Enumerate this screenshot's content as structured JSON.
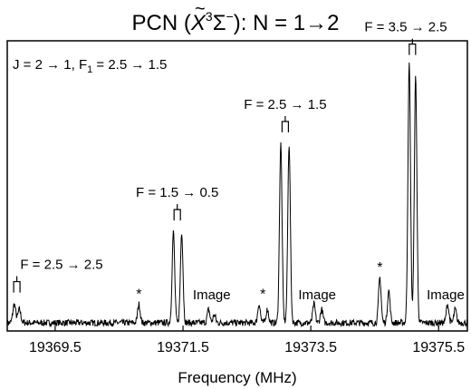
{
  "chart_data": {
    "type": "line",
    "title": {
      "prefix": "PCN (",
      "state_letter": "X",
      "state_tilde": "~",
      "state_sup": "3",
      "state_sigma": "Σ",
      "state_sup_minus": "−",
      "suffix": "): N = 1",
      "arrow": "→",
      "end": "2"
    },
    "corner_label": {
      "part1": "J = 2 → 1, F",
      "sub": "1",
      "part2": " = 2.5 → 1.5"
    },
    "xlabel": "Frequency (MHz)",
    "ylabel": "",
    "xlim": [
      19368.75,
      19375.95
    ],
    "ylim": [
      -0.03,
      1.05
    ],
    "xticks": [
      19369.5,
      19371.5,
      19373.5,
      19375.5
    ],
    "xtick_labels": [
      "19369.5",
      "19371.5",
      "19373.5",
      "19375.5"
    ],
    "grid": false,
    "series_color": "#000000",
    "peaks": [
      {
        "x": 19368.86,
        "h": 0.07,
        "w": 0.022
      },
      {
        "x": 19368.94,
        "h": 0.05,
        "w": 0.022
      },
      {
        "x": 19370.81,
        "h": 0.07,
        "w": 0.02
      },
      {
        "x": 19371.35,
        "h": 0.34,
        "w": 0.02
      },
      {
        "x": 19371.48,
        "h": 0.34,
        "w": 0.02
      },
      {
        "x": 19371.9,
        "h": 0.05,
        "w": 0.02
      },
      {
        "x": 19371.99,
        "h": 0.03,
        "w": 0.02
      },
      {
        "x": 19372.69,
        "h": 0.07,
        "w": 0.02
      },
      {
        "x": 19372.82,
        "h": 0.05,
        "w": 0.02
      },
      {
        "x": 19373.03,
        "h": 0.67,
        "w": 0.02
      },
      {
        "x": 19373.16,
        "h": 0.67,
        "w": 0.02
      },
      {
        "x": 19373.55,
        "h": 0.07,
        "w": 0.02
      },
      {
        "x": 19373.67,
        "h": 0.05,
        "w": 0.02
      },
      {
        "x": 19374.58,
        "h": 0.17,
        "w": 0.02
      },
      {
        "x": 19374.72,
        "h": 0.12,
        "w": 0.02
      },
      {
        "x": 19375.04,
        "h": 0.97,
        "w": 0.02
      },
      {
        "x": 19375.14,
        "h": 0.92,
        "w": 0.02
      },
      {
        "x": 19375.64,
        "h": 0.07,
        "w": 0.02
      },
      {
        "x": 19375.76,
        "h": 0.05,
        "w": 0.02
      }
    ],
    "noise_amplitude": 0.012,
    "annotations": [
      {
        "text": "F = 2.5 → 2.5",
        "x": 19368.9,
        "y": 0.1,
        "bracket": true
      },
      {
        "text": "F = 1.5 → 0.5",
        "x": 19371.41,
        "y": 0.37,
        "bracket": true
      },
      {
        "text": "F = 2.5 → 1.5",
        "x": 19373.1,
        "y": 0.7,
        "bracket": true
      },
      {
        "text": "F = 3.5 → 2.5",
        "x": 19375.09,
        "y": 0.99,
        "bracket": true
      }
    ],
    "image_labels": [
      {
        "text": "Image",
        "x": 19371.95
      },
      {
        "text": "Image",
        "x": 19373.6
      },
      {
        "text": "Image",
        "x": 19375.7
      }
    ],
    "stars": [
      {
        "text": "*",
        "x": 19370.81
      },
      {
        "text": "*",
        "x": 19372.75
      },
      {
        "text": "*",
        "x": 19374.58
      }
    ]
  }
}
